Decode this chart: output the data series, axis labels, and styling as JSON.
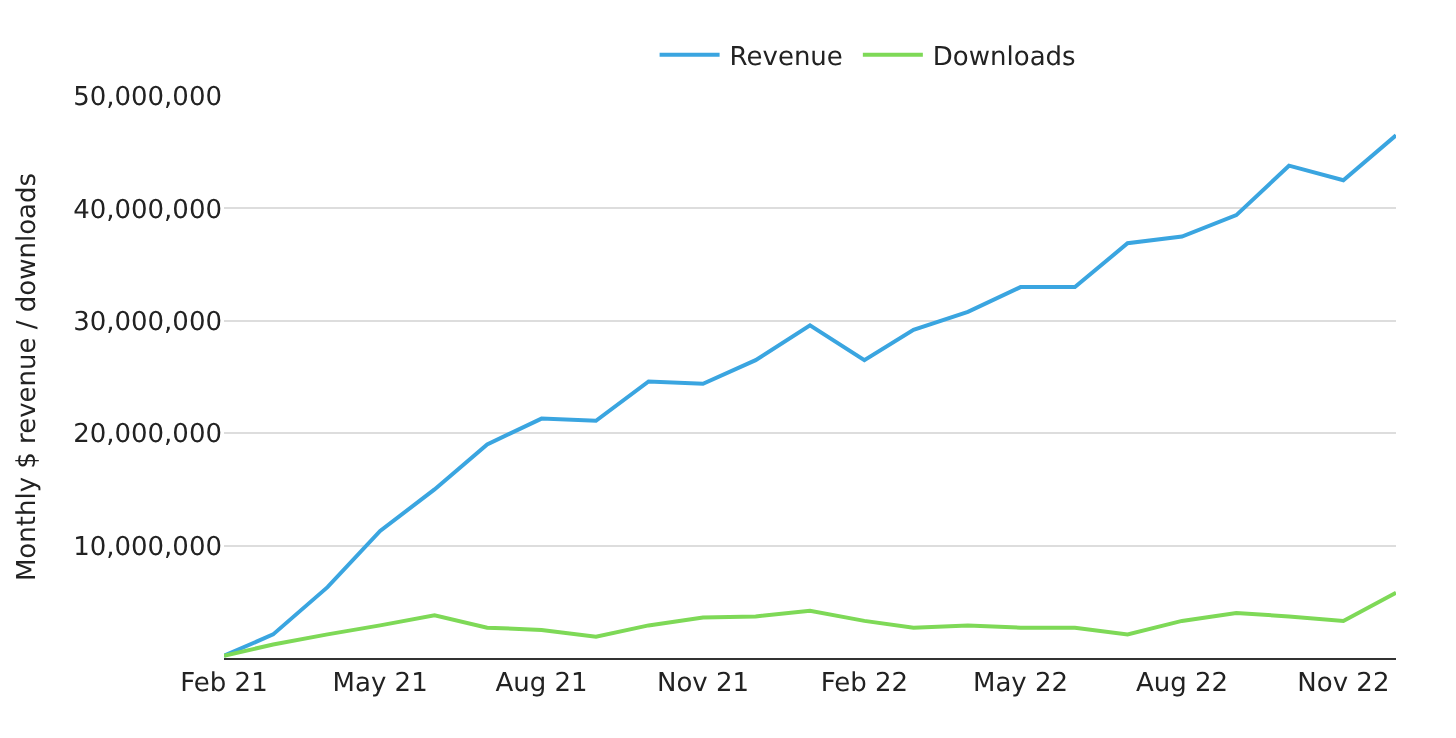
{
  "chart_data": {
    "type": "line",
    "ylabel": "Monthly $ revenue / downloads",
    "x": [
      "2021-02",
      "2021-03",
      "2021-04",
      "2021-05",
      "2021-06",
      "2021-07",
      "2021-08",
      "2021-09",
      "2021-10",
      "2021-11",
      "2021-12",
      "2022-01",
      "2022-02",
      "2022-03",
      "2022-04",
      "2022-05",
      "2022-06",
      "2022-07",
      "2022-08",
      "2022-09",
      "2022-10",
      "2022-11",
      "2022-12"
    ],
    "series": [
      {
        "name": "Revenue",
        "color": "#3aa5e0",
        "values": [
          200000,
          2100000,
          6300000,
          11300000,
          15000000,
          19000000,
          21300000,
          21100000,
          24600000,
          24400000,
          26500000,
          29600000,
          26500000,
          29200000,
          30800000,
          33000000,
          33000000,
          36900000,
          37500000,
          39400000,
          43800000,
          42500000,
          46500000
        ]
      },
      {
        "name": "Downloads",
        "color": "#7ed957",
        "values": [
          200000,
          1200000,
          2100000,
          2900000,
          3800000,
          2700000,
          2500000,
          1900000,
          2900000,
          3600000,
          3700000,
          4200000,
          3300000,
          2700000,
          2900000,
          2700000,
          2700000,
          2100000,
          3300000,
          4000000,
          3700000,
          3300000,
          5800000
        ]
      }
    ],
    "xlim": [
      "2021-02",
      "2022-12"
    ],
    "xticks": [
      {
        "value": "2021-02",
        "label": "Feb 21"
      },
      {
        "value": "2021-05",
        "label": "May 21"
      },
      {
        "value": "2021-08",
        "label": "Aug 21"
      },
      {
        "value": "2021-11",
        "label": "Nov 21"
      },
      {
        "value": "2022-02",
        "label": "Feb 22"
      },
      {
        "value": "2022-05",
        "label": "May 22"
      },
      {
        "value": "2022-08",
        "label": "Aug 22"
      },
      {
        "value": "2022-11",
        "label": "Nov 22"
      }
    ],
    "ylim": [
      0,
      50000000
    ],
    "yticks": [
      {
        "value": 0,
        "label": null
      },
      {
        "value": 10000000,
        "label": "10,000,000"
      },
      {
        "value": 20000000,
        "label": "20,000,000"
      },
      {
        "value": 30000000,
        "label": "30,000,000"
      },
      {
        "value": 40000000,
        "label": "40,000,000"
      },
      {
        "value": 50000000,
        "label": "50,000,000"
      }
    ],
    "grid": "y",
    "legend": "top",
    "marker": "none",
    "line_style": "solid"
  }
}
